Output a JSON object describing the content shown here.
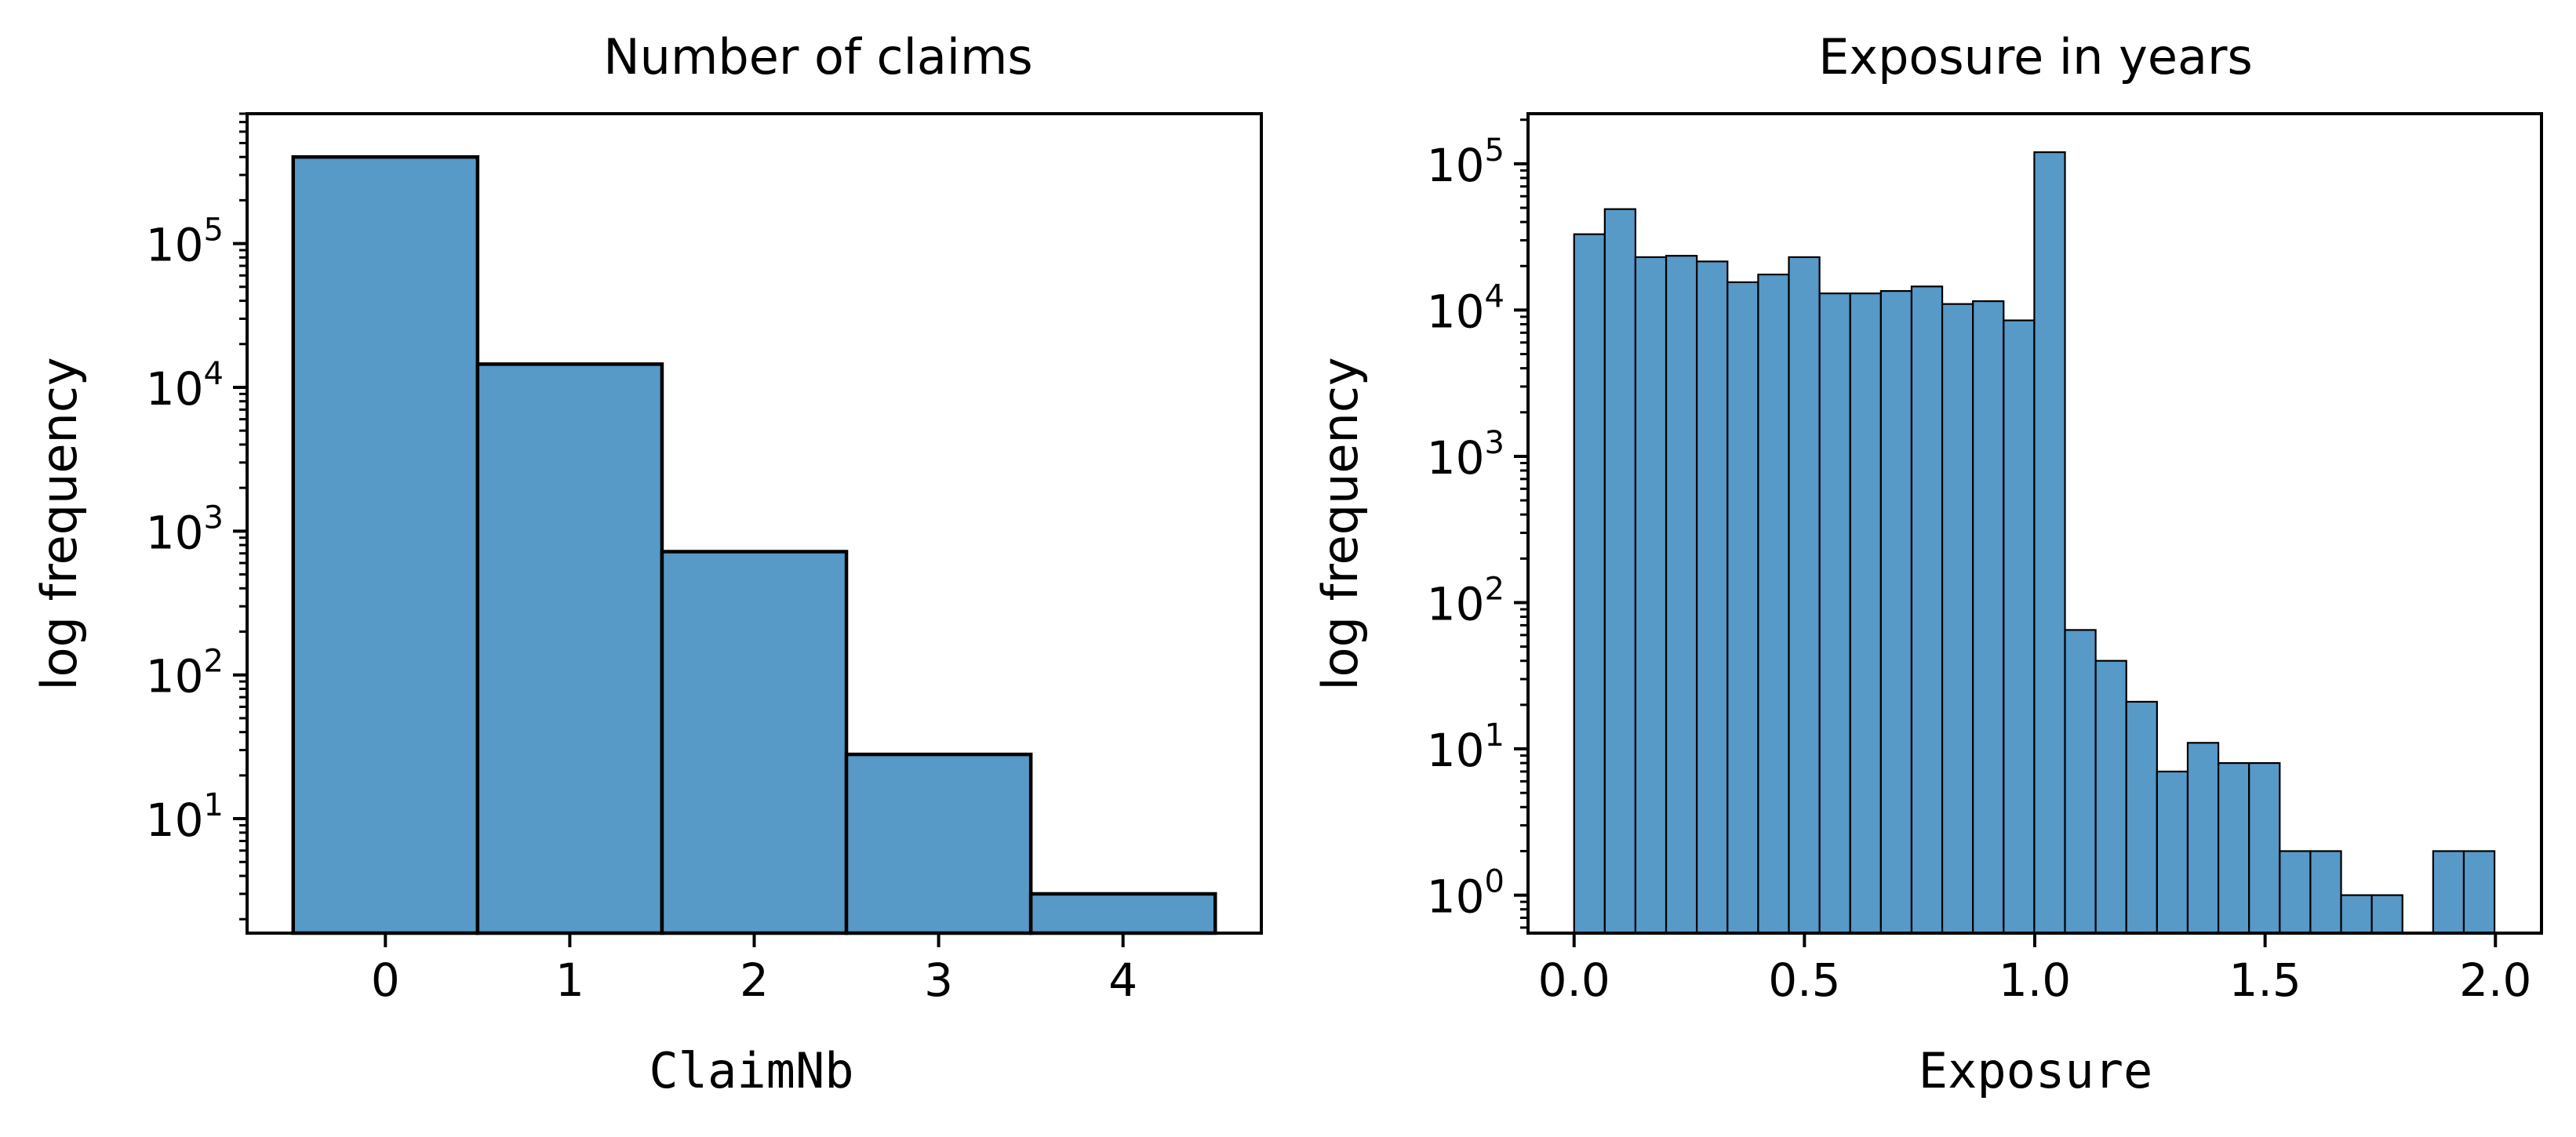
{
  "chart_data": [
    {
      "type": "bar",
      "title": "Number of claims",
      "xlabel": "ClaimNb",
      "ylabel": "log frequency",
      "yscale": "log",
      "ylim": [
        1.6,
        800000
      ],
      "xlim": [
        -0.75,
        4.75
      ],
      "x_ticks": [
        "0",
        "1",
        "2",
        "3",
        "4"
      ],
      "y_ticks": [
        "10^1",
        "10^2",
        "10^3",
        "10^4",
        "10^5"
      ],
      "bar_color": "#5799c7",
      "edge_color": "#000000",
      "bins": [
        {
          "x0": -0.5,
          "x1": 0.5,
          "value": 400000
        },
        {
          "x0": 0.5,
          "x1": 1.5,
          "value": 14500
        },
        {
          "x0": 1.5,
          "x1": 2.5,
          "value": 720
        },
        {
          "x0": 2.5,
          "x1": 3.5,
          "value": 28
        },
        {
          "x0": 3.5,
          "x1": 4.5,
          "value": 3
        }
      ]
    },
    {
      "type": "bar",
      "title": "Exposure in years",
      "xlabel": "Exposure",
      "ylabel": "log frequency",
      "yscale": "log",
      "ylim": [
        0.55,
        220000
      ],
      "xlim": [
        -0.1,
        2.1
      ],
      "x_ticks": [
        "0.0",
        "0.5",
        "1.0",
        "1.5",
        "2.0"
      ],
      "y_ticks": [
        "10^0",
        "10^1",
        "10^2",
        "10^3",
        "10^4",
        "10^5"
      ],
      "bar_color": "#5799c7",
      "edge_color": "#000000",
      "bin_start": 0.0,
      "bin_width": 0.0666,
      "values": [
        33000,
        49000,
        23000,
        23500,
        21500,
        15500,
        17500,
        23000,
        13000,
        13000,
        13500,
        14500,
        11000,
        11500,
        8500,
        120000,
        65,
        40,
        21,
        7,
        11,
        8,
        8,
        2,
        2,
        1,
        1,
        0,
        2,
        2
      ]
    }
  ]
}
